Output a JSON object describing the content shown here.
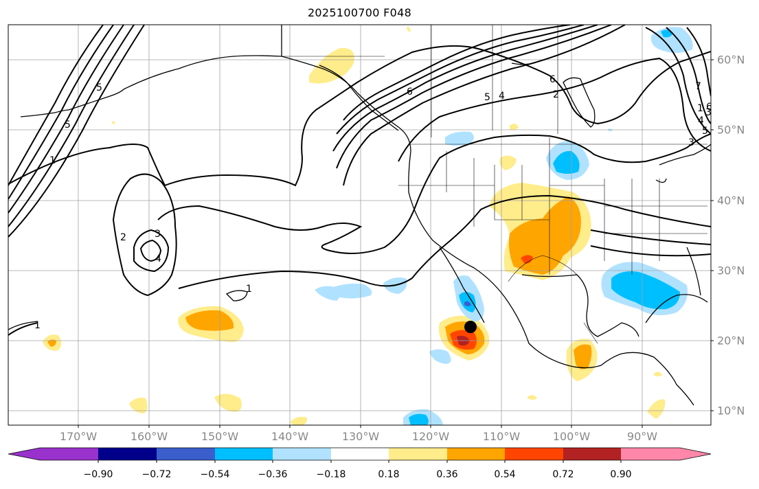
{
  "title": "2025100700 F048",
  "map": {
    "lon_labels": [
      "170°W",
      "160°W",
      "150°W",
      "140°W",
      "130°W",
      "120°W",
      "110°W",
      "100°W",
      "90°W"
    ],
    "lat_labels": [
      "60°N",
      "50°N",
      "40°N",
      "30°N",
      "20°N",
      "10°N"
    ],
    "contour_labels": [
      "5",
      "1",
      "2",
      "3",
      "4",
      "5",
      "6",
      "1",
      "2",
      "3",
      "1",
      "4",
      "5",
      "6",
      "7",
      "1",
      "3",
      "4",
      "5",
      "6"
    ],
    "marker": {
      "name": "storm-center-dot",
      "lon": -114.5,
      "lat": 21.9
    }
  },
  "colorbar": {
    "tick_labels": [
      "−0.90",
      "−0.72",
      "−0.54",
      "−0.36",
      "−0.18",
      "0.18",
      "0.36",
      "0.54",
      "0.72",
      "0.90"
    ],
    "colors": [
      "#9932cc",
      "#00008b",
      "#3a5fcd",
      "#00bfff",
      "#b0e2ff",
      "#ffffff",
      "#ffec8b",
      "#ffa500",
      "#ff4500",
      "#b22222",
      "#ff88aa"
    ]
  }
}
